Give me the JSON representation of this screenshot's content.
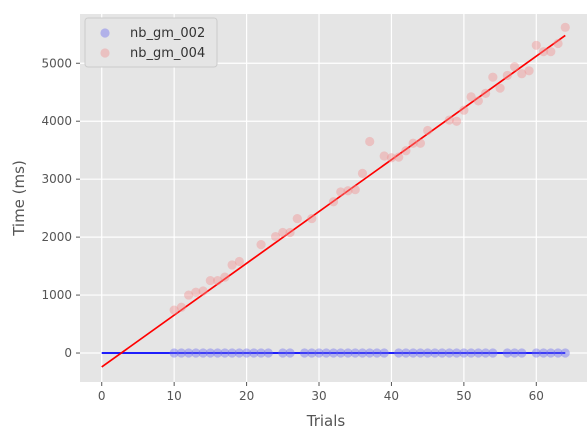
{
  "chart_data": {
    "type": "scatter",
    "xlabel": "Trials",
    "ylabel": "Time (ms)",
    "xlim": [
      -3,
      67
    ],
    "ylim": [
      -500,
      5850
    ],
    "x_ticks": [
      0,
      10,
      20,
      30,
      40,
      50,
      60
    ],
    "y_ticks": [
      0,
      1000,
      2000,
      3000,
      4000,
      5000
    ],
    "grid": true,
    "legend_position": "top-left",
    "series": [
      {
        "name": "nb_gm_002",
        "color": "#6b6bef",
        "x": [
          10,
          11,
          12,
          13,
          14,
          15,
          16,
          17,
          18,
          19,
          20,
          21,
          22,
          23,
          25,
          26,
          28,
          29,
          30,
          31,
          32,
          33,
          34,
          35,
          36,
          37,
          38,
          39,
          41,
          42,
          43,
          44,
          45,
          46,
          47,
          48,
          49,
          50,
          51,
          52,
          53,
          54,
          56,
          57,
          58,
          60,
          61,
          62,
          63,
          64
        ],
        "y": [
          0,
          0,
          0,
          0,
          0,
          0,
          0,
          0,
          0,
          0,
          0,
          0,
          0,
          0,
          0,
          0,
          0,
          0,
          0,
          0,
          0,
          0,
          0,
          0,
          0,
          0,
          0,
          0,
          0,
          0,
          0,
          0,
          0,
          0,
          0,
          0,
          0,
          0,
          0,
          0,
          0,
          0,
          0,
          0,
          0,
          0,
          0,
          0,
          0,
          0
        ]
      },
      {
        "name": "nb_gm_004",
        "color": "#f18f8f",
        "x": [
          10,
          11,
          12,
          13,
          14,
          15,
          16,
          17,
          18,
          19,
          22,
          24,
          25,
          26,
          27,
          29,
          32,
          33,
          34,
          35,
          36,
          37,
          39,
          40,
          41,
          42,
          43,
          44,
          45,
          48,
          49,
          50,
          51,
          52,
          53,
          54,
          55,
          56,
          57,
          58,
          59,
          60,
          61,
          62,
          63,
          64
        ],
        "y": [
          740,
          790,
          1000,
          1050,
          1070,
          1250,
          1250,
          1310,
          1520,
          1580,
          1870,
          2010,
          2080,
          2080,
          2320,
          2320,
          2610,
          2780,
          2800,
          2820,
          3100,
          3650,
          3400,
          3370,
          3380,
          3490,
          3620,
          3620,
          3840,
          4020,
          4000,
          4190,
          4420,
          4350,
          4480,
          4760,
          4570,
          4790,
          4940,
          4820,
          4870,
          5310,
          5200,
          5200,
          5340,
          5620
        ]
      }
    ],
    "fit_lines": [
      {
        "series": "nb_gm_002",
        "color": "#0000ff",
        "x": [
          0,
          64
        ],
        "y": [
          0,
          0
        ]
      },
      {
        "series": "nb_gm_004",
        "color": "#ff0000",
        "x": [
          0,
          64
        ],
        "y": [
          -240,
          5480
        ]
      }
    ]
  }
}
